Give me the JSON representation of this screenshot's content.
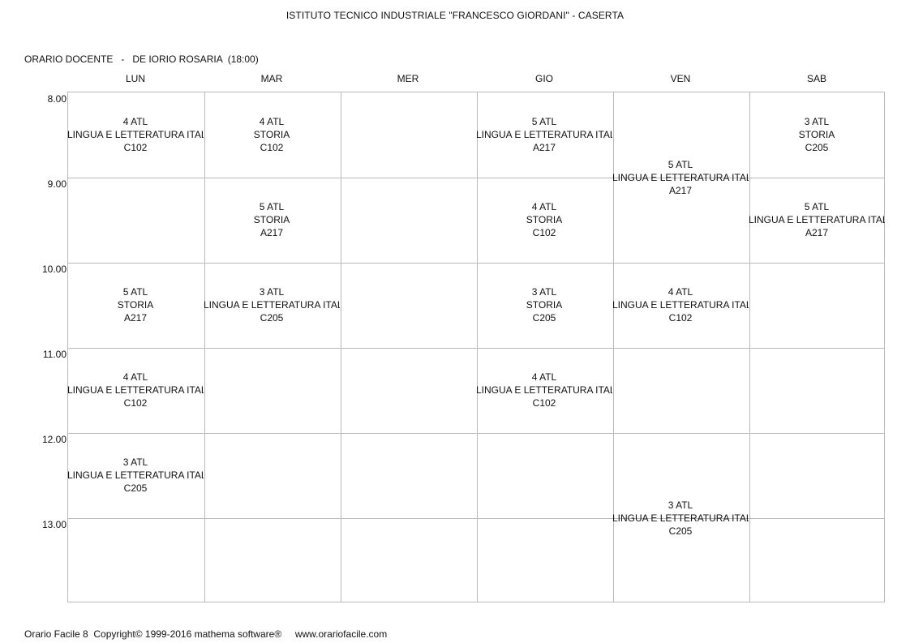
{
  "header": {
    "title": "ISTITUTO TECNICO INDUSTRIALE \"FRANCESCO GIORDANI\" - CASERTA",
    "teacher_line": "ORARIO DOCENTE   -   DE IORIO ROSARIA  (18:00)"
  },
  "days": [
    "LUN",
    "MAR",
    "MER",
    "GIO",
    "VEN",
    "SAB"
  ],
  "times": [
    "8.00",
    "9.00",
    "10.00",
    "11.00",
    "12.00",
    "13.00"
  ],
  "lessons": [
    {
      "class": "4 ATL",
      "subject": "LINGUA E LETTERATURA ITALIA",
      "room": "C102"
    },
    {
      "class": "4 ATL",
      "subject": "STORIA",
      "room": "C102"
    },
    {
      "class": "5 ATL",
      "subject": "LINGUA E LETTERATURA ITALIA",
      "room": "A217"
    },
    {
      "class": "3 ATL",
      "subject": "STORIA",
      "room": "C205"
    },
    {
      "class": "5 ATL",
      "subject": "LINGUA E LETTERATURA ITALIA",
      "room": "A217"
    },
    {
      "class": "5 ATL",
      "subject": "STORIA",
      "room": "A217"
    },
    {
      "class": "4 ATL",
      "subject": "STORIA",
      "room": "C102"
    },
    {
      "class": "5 ATL",
      "subject": "LINGUA E LETTERATURA ITALIA",
      "room": "A217"
    },
    {
      "class": "5 ATL",
      "subject": "STORIA",
      "room": "A217"
    },
    {
      "class": "3 ATL",
      "subject": "LINGUA E LETTERATURA ITALIA",
      "room": "C205"
    },
    {
      "class": "3 ATL",
      "subject": "STORIA",
      "room": "C205"
    },
    {
      "class": "4 ATL",
      "subject": "LINGUA E LETTERATURA ITALIA",
      "room": "C102"
    },
    {
      "class": "4 ATL",
      "subject": "LINGUA E LETTERATURA ITALIA",
      "room": "C102"
    },
    {
      "class": "4 ATL",
      "subject": "LINGUA E LETTERATURA ITALIA",
      "room": "C102"
    },
    {
      "class": "3 ATL",
      "subject": "LINGUA E LETTERATURA ITALIA",
      "room": "C205"
    },
    {
      "class": "3 ATL",
      "subject": "LINGUA E LETTERATURA ITALIA",
      "room": "C205"
    }
  ],
  "footer": {
    "text": "Orario Facile 8  Copyright© 1999-2016 mathema software®     www.orariofacile.com"
  }
}
